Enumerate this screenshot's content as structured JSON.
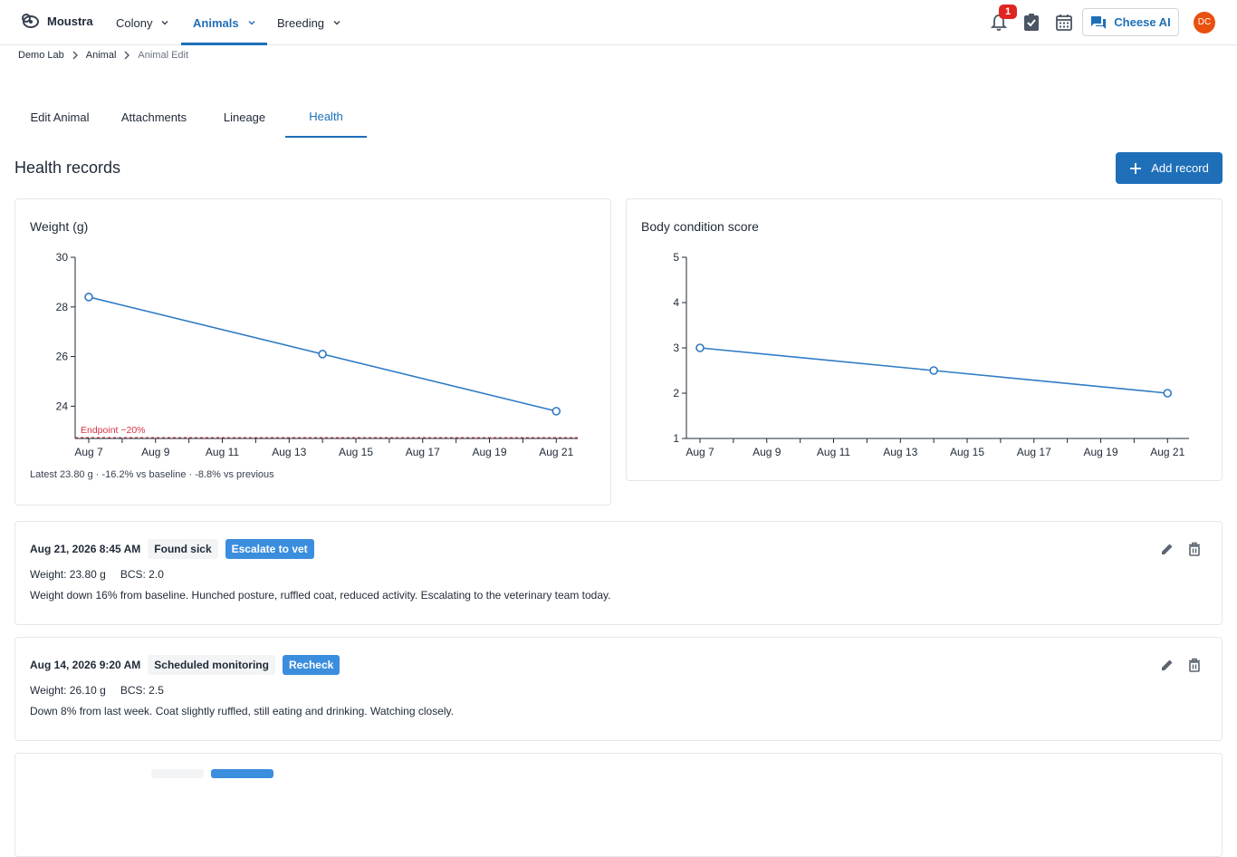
{
  "header": {
    "brand": "Moustra",
    "nav": [
      {
        "label": "Colony"
      },
      {
        "label": "Animals"
      },
      {
        "label": "Breeding"
      }
    ],
    "notification_count": "1",
    "ai_button": "Cheese AI",
    "avatar_initials": "DC"
  },
  "breadcrumb": [
    "Demo Lab",
    "Animal",
    "Animal Edit"
  ],
  "tabs": [
    "Edit Animal",
    "Attachments",
    "Lineage",
    "Health"
  ],
  "section": {
    "title": "Health records",
    "add_button": "Add record"
  },
  "weight_card": {
    "title": "Weight (g)",
    "note": "Latest 23.80 g · -16.2% vs baseline · -8.8% vs previous",
    "endpoint_label": "Endpoint −20%"
  },
  "bcs_card": {
    "title": "Body condition score"
  },
  "chart_data": [
    {
      "type": "line",
      "title": "Weight (g)",
      "x_ticks": [
        "Aug 7",
        "Aug 9",
        "Aug 11",
        "Aug 13",
        "Aug 15",
        "Aug 17",
        "Aug 19",
        "Aug 21"
      ],
      "y_ticks": [
        24,
        26,
        28,
        30
      ],
      "x": [
        "Aug 7",
        "Aug 14",
        "Aug 21"
      ],
      "values": [
        28.4,
        26.1,
        23.8
      ],
      "ylim": [
        22.7,
        30
      ],
      "xlim": [
        "Aug 6.6",
        "Aug 22"
      ],
      "reference_line": {
        "label": "Endpoint −20%",
        "value": 22.72,
        "color": "#d63343"
      },
      "color": "#2f7bc4"
    },
    {
      "type": "line",
      "title": "Body condition score",
      "x_ticks": [
        "Aug 7",
        "Aug 9",
        "Aug 11",
        "Aug 13",
        "Aug 15",
        "Aug 17",
        "Aug 19",
        "Aug 21"
      ],
      "y_ticks": [
        1,
        2,
        3,
        4,
        5
      ],
      "x": [
        "Aug 7",
        "Aug 14",
        "Aug 21"
      ],
      "values": [
        3.0,
        2.5,
        2.0
      ],
      "ylim": [
        1,
        5
      ],
      "color": "#2f7bc4"
    }
  ],
  "records": [
    {
      "date": "Aug 21, 2026 8:45 AM",
      "type_tag": "Found sick",
      "action_tag": "Escalate to vet",
      "weight": "Weight: 23.80 g",
      "bcs": "BCS: 2.0",
      "note": "Weight down 16% from baseline. Hunched posture, ruffled coat, reduced activity. Escalating to the veterinary team today."
    },
    {
      "date": "Aug 14, 2026 9:20 AM",
      "type_tag": "Scheduled monitoring",
      "action_tag": "Recheck",
      "weight": "Weight: 26.10 g",
      "bcs": "BCS: 2.5",
      "note": "Down 8% from last week. Coat slightly ruffled, still eating and drinking. Watching closely."
    }
  ],
  "colors": {
    "accent": "#1e6fb8",
    "line": "#2f7bc4",
    "endpoint": "#d63343",
    "avatar": "#e8500f",
    "badge": "#e02424"
  }
}
